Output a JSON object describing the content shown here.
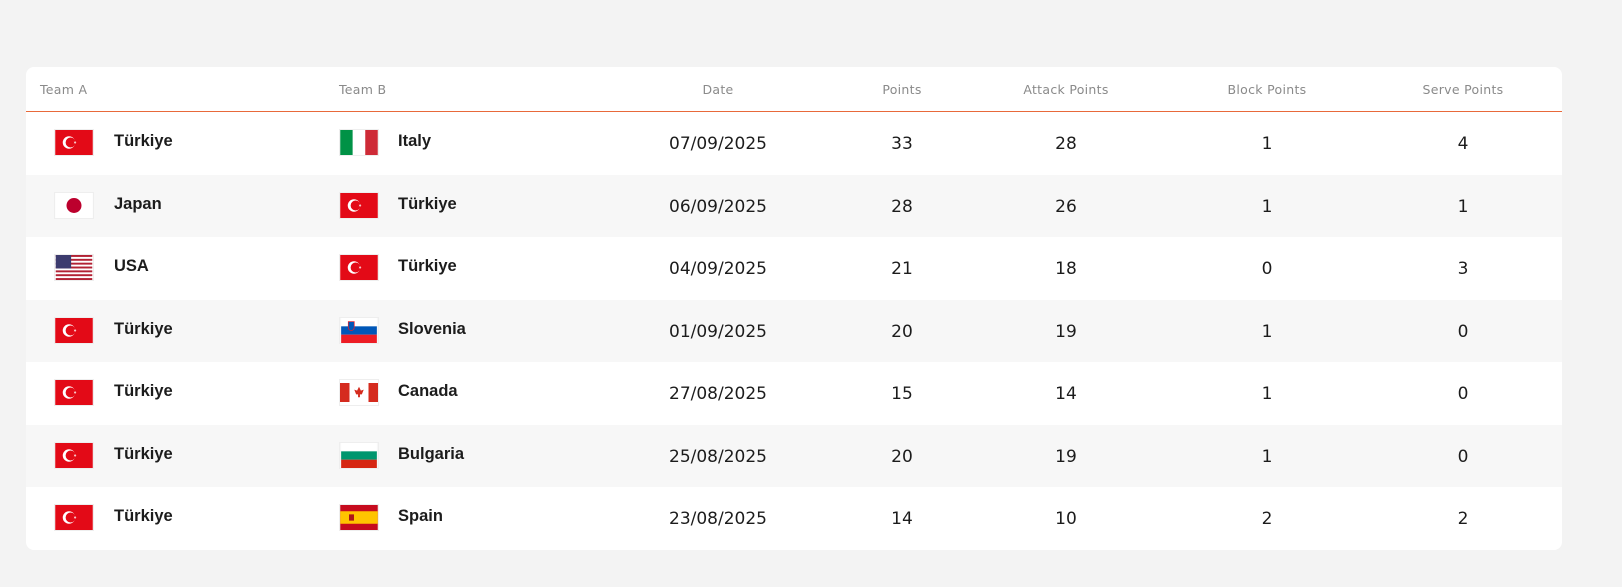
{
  "table": {
    "headers": {
      "team_a": "Team A",
      "team_b": "Team B",
      "date": "Date",
      "points": "Points",
      "attack": "Attack Points",
      "block": "Block Points",
      "serve": "Serve Points"
    },
    "accent": "#e8693a",
    "rows": [
      {
        "team_a": "Türkiye",
        "flag_a": "turkey-flag",
        "team_b": "Italy",
        "flag_b": "italy-flag",
        "date": "07/09/2025",
        "points": "33",
        "attack": "28",
        "block": "1",
        "serve": "4"
      },
      {
        "team_a": "Japan",
        "flag_a": "japan-flag",
        "team_b": "Türkiye",
        "flag_b": "turkey-flag",
        "date": "06/09/2025",
        "points": "28",
        "attack": "26",
        "block": "1",
        "serve": "1"
      },
      {
        "team_a": "USA",
        "flag_a": "usa-flag",
        "team_b": "Türkiye",
        "flag_b": "turkey-flag",
        "date": "04/09/2025",
        "points": "21",
        "attack": "18",
        "block": "0",
        "serve": "3"
      },
      {
        "team_a": "Türkiye",
        "flag_a": "turkey-flag",
        "team_b": "Slovenia",
        "flag_b": "slovenia-flag",
        "date": "01/09/2025",
        "points": "20",
        "attack": "19",
        "block": "1",
        "serve": "0"
      },
      {
        "team_a": "Türkiye",
        "flag_a": "turkey-flag",
        "team_b": "Canada",
        "flag_b": "canada-flag",
        "date": "27/08/2025",
        "points": "15",
        "attack": "14",
        "block": "1",
        "serve": "0"
      },
      {
        "team_a": "Türkiye",
        "flag_a": "turkey-flag",
        "team_b": "Bulgaria",
        "flag_b": "bulgaria-flag",
        "date": "25/08/2025",
        "points": "20",
        "attack": "19",
        "block": "1",
        "serve": "0"
      },
      {
        "team_a": "Türkiye",
        "flag_a": "turkey-flag",
        "team_b": "Spain",
        "flag_b": "spain-flag",
        "date": "23/08/2025",
        "points": "14",
        "attack": "10",
        "block": "2",
        "serve": "2"
      }
    ]
  }
}
